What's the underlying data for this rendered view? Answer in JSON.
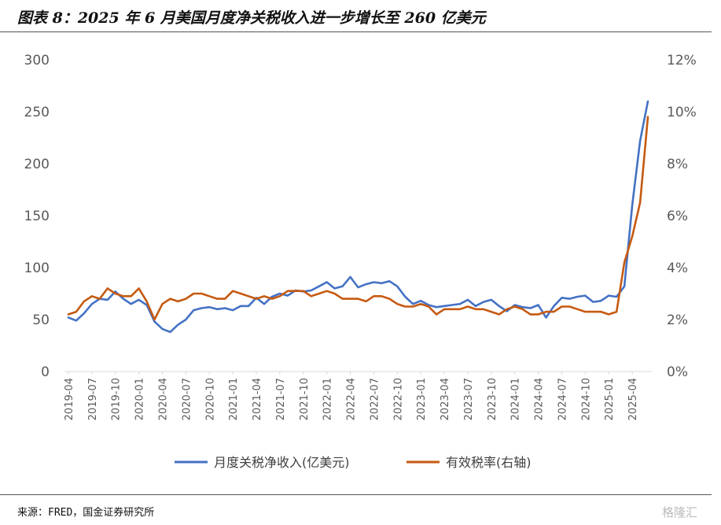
{
  "header": {
    "title": "图表 8：2025 年 6 月美国月度净关税收入进一步增长至 260 亿美元"
  },
  "footer": {
    "source": "来源：FRED，国金证券研究所",
    "watermark": "格隆汇"
  },
  "chart_data": {
    "type": "line",
    "title": "图表 8：2025 年 6 月美国月度净关税收入进一步增长至 260 亿美元",
    "x": [
      "2019-04",
      "2019-05",
      "2019-06",
      "2019-07",
      "2019-08",
      "2019-09",
      "2019-10",
      "2019-11",
      "2019-12",
      "2020-01",
      "2020-02",
      "2020-03",
      "2020-04",
      "2020-05",
      "2020-06",
      "2020-07",
      "2020-08",
      "2020-09",
      "2020-10",
      "2020-11",
      "2020-12",
      "2021-01",
      "2021-02",
      "2021-03",
      "2021-04",
      "2021-05",
      "2021-06",
      "2021-07",
      "2021-08",
      "2021-09",
      "2021-10",
      "2021-11",
      "2021-12",
      "2022-01",
      "2022-02",
      "2022-03",
      "2022-04",
      "2022-05",
      "2022-06",
      "2022-07",
      "2022-08",
      "2022-09",
      "2022-10",
      "2022-11",
      "2022-12",
      "2023-01",
      "2023-02",
      "2023-03",
      "2023-04",
      "2023-05",
      "2023-06",
      "2023-07",
      "2023-08",
      "2023-09",
      "2023-10",
      "2023-11",
      "2023-12",
      "2024-01",
      "2024-02",
      "2024-03",
      "2024-04",
      "2024-05",
      "2024-06",
      "2024-07",
      "2024-08",
      "2024-09",
      "2024-10",
      "2024-11",
      "2024-12",
      "2025-01",
      "2025-02",
      "2025-03",
      "2025-04",
      "2025-05",
      "2025-06"
    ],
    "x_tick_labels": [
      "2019-04",
      "2019-07",
      "2019-10",
      "2020-01",
      "2020-04",
      "2020-07",
      "2020-10",
      "2021-01",
      "2021-04",
      "2021-07",
      "2021-10",
      "2022-01",
      "2022-04",
      "2022-07",
      "2022-10",
      "2023-01",
      "2023-04",
      "2023-07",
      "2023-10",
      "2024-01",
      "2024-04",
      "2024-07",
      "2024-10",
      "2025-01",
      "2025-04"
    ],
    "y_left": {
      "lim": [
        0,
        300
      ],
      "ticks": [
        "0",
        "50",
        "100",
        "150",
        "200",
        "250",
        "300"
      ]
    },
    "y_right": {
      "lim": [
        0,
        12
      ],
      "ticks": [
        "0%",
        "2%",
        "4%",
        "6%",
        "8%",
        "10%",
        "12%"
      ]
    },
    "grid": false,
    "legend_position": "bottom",
    "series": [
      {
        "name": "月度关税净收入(亿美元)",
        "axis": "left",
        "color": "#4472c4",
        "values": [
          52,
          49,
          56,
          65,
          70,
          69,
          77,
          70,
          65,
          69,
          64,
          48,
          41,
          38,
          45,
          50,
          59,
          61,
          62,
          60,
          61,
          59,
          63,
          63,
          71,
          65,
          72,
          75,
          73,
          78,
          77,
          78,
          82,
          86,
          80,
          82,
          91,
          81,
          84,
          86,
          85,
          87,
          82,
          72,
          65,
          68,
          64,
          62,
          63,
          64,
          65,
          69,
          63,
          67,
          69,
          63,
          58,
          64,
          62,
          61,
          64,
          52,
          63,
          71,
          70,
          72,
          73,
          67,
          68,
          73,
          72,
          82,
          160,
          222,
          260
        ]
      },
      {
        "name": "有效税率(右轴)",
        "axis": "right",
        "color": "#c55a11",
        "values": [
          2.2,
          2.3,
          2.7,
          2.9,
          2.8,
          3.2,
          3.0,
          2.9,
          2.9,
          3.2,
          2.7,
          2.0,
          2.6,
          2.8,
          2.7,
          2.8,
          3.0,
          3.0,
          2.9,
          2.8,
          2.8,
          3.1,
          3.0,
          2.9,
          2.8,
          2.9,
          2.8,
          2.9,
          3.1,
          3.1,
          3.1,
          2.9,
          3.0,
          3.1,
          3.0,
          2.8,
          2.8,
          2.8,
          2.7,
          2.9,
          2.9,
          2.8,
          2.6,
          2.5,
          2.5,
          2.6,
          2.5,
          2.2,
          2.4,
          2.4,
          2.4,
          2.5,
          2.4,
          2.4,
          2.3,
          2.2,
          2.4,
          2.5,
          2.4,
          2.2,
          2.2,
          2.3,
          2.3,
          2.5,
          2.5,
          2.4,
          2.3,
          2.3,
          2.3,
          2.2,
          2.3,
          4.2,
          5.2,
          6.5,
          9.8
        ]
      }
    ]
  }
}
